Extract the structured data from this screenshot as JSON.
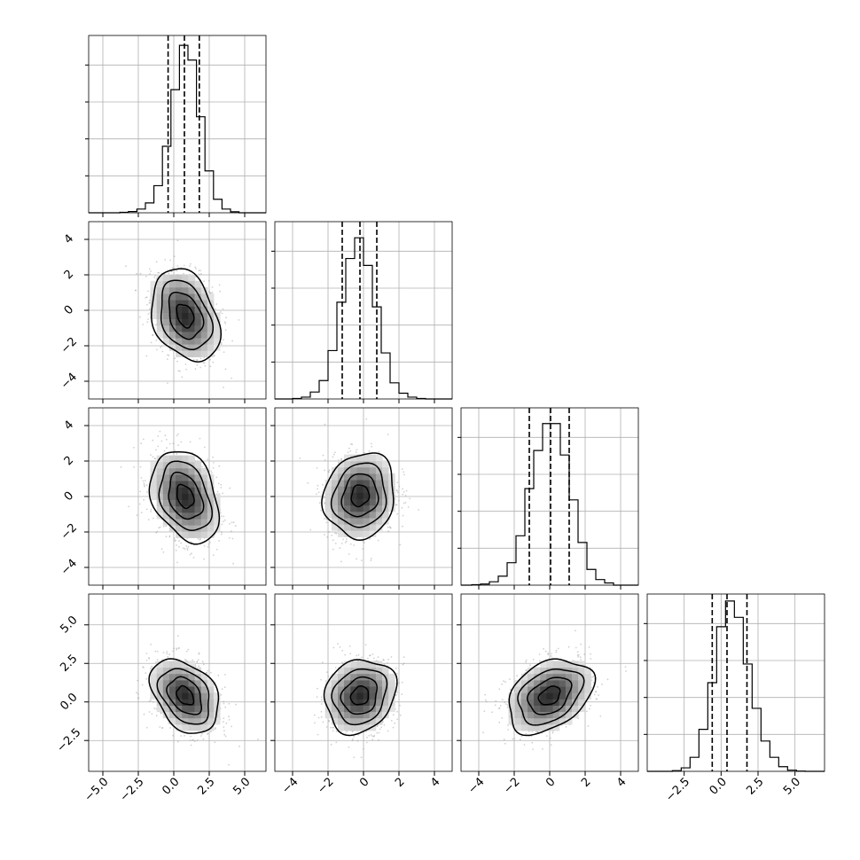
{
  "chart_data": {
    "type": "corner",
    "parameters": [
      {
        "name": "",
        "xlim": [
          -6.0,
          6.5
        ],
        "xticks": [
          -5.0,
          -2.5,
          0.0,
          2.5,
          5.0
        ],
        "xtick_labels": [
          "−5.0",
          "−2.5",
          "0.0",
          "2.5",
          "5.0"
        ],
        "quantiles": [
          -0.4,
          0.75,
          1.8
        ]
      },
      {
        "name": "",
        "xlim": [
          -5.0,
          5.0
        ],
        "xticks": [
          -4,
          -2,
          0,
          2,
          4
        ],
        "xtick_labels": [
          "−4",
          "−2",
          "0",
          "2",
          "4"
        ],
        "quantiles": [
          -1.2,
          -0.2,
          0.75
        ],
        "ylim": [
          -5.0,
          5.0
        ],
        "yticks": [
          -4,
          -2,
          0,
          2,
          4
        ],
        "ytick_labels": [
          "−4",
          "−2",
          "0",
          "2",
          "4"
        ]
      },
      {
        "name": "",
        "xlim": [
          -5.0,
          5.0
        ],
        "xticks": [
          -4,
          -2,
          0,
          2,
          4
        ],
        "xtick_labels": [
          "−4",
          "−2",
          "0",
          "2",
          "4"
        ],
        "quantiles": [
          -1.15,
          0.05,
          1.1
        ],
        "ylim": [
          -5.0,
          5.0
        ],
        "yticks": [
          -4,
          -2,
          0,
          2,
          4
        ],
        "ytick_labels": [
          "−4",
          "−2",
          "0",
          "2",
          "4"
        ]
      },
      {
        "name": "",
        "xlim": [
          -5.0,
          7.0
        ],
        "xticks": [
          -2.5,
          0.0,
          2.5,
          5.0
        ],
        "xtick_labels": [
          "−2.5",
          "0.0",
          "2.5",
          "5.0"
        ],
        "quantiles": [
          -0.6,
          0.4,
          1.75
        ],
        "ylim": [
          -4.5,
          7.0
        ],
        "yticks": [
          -2.5,
          0.0,
          2.5,
          5.0
        ],
        "ytick_labels": [
          "−2.5",
          "0.0",
          "2.5",
          "5.0"
        ]
      }
    ],
    "histograms": [
      {
        "bin_edges": [
          -3.8,
          -3.2,
          -2.6,
          -2.0,
          -1.4,
          -0.8,
          -0.2,
          0.4,
          1.0,
          1.6,
          2.2,
          2.8,
          3.4,
          4.0,
          4.6
        ],
        "counts": [
          2,
          5,
          15,
          40,
          110,
          270,
          500,
          680,
          620,
          390,
          170,
          55,
          15,
          4
        ],
        "ymax": 720
      },
      {
        "bin_edges": [
          -4.0,
          -3.5,
          -3.0,
          -2.5,
          -2.0,
          -1.5,
          -1.0,
          -0.5,
          0.0,
          0.5,
          1.0,
          1.5,
          2.0,
          2.5,
          3.0,
          3.5
        ],
        "counts": [
          2,
          8,
          30,
          80,
          210,
          420,
          610,
          700,
          580,
          400,
          200,
          70,
          25,
          8,
          2
        ],
        "ymax": 770
      },
      {
        "bin_edges": [
          -4.4,
          -3.9,
          -3.4,
          -2.9,
          -2.4,
          -1.9,
          -1.4,
          -0.9,
          -0.4,
          0.1,
          0.6,
          1.1,
          1.6,
          2.1,
          2.6,
          3.1,
          3.6
        ],
        "counts": [
          2,
          5,
          15,
          40,
          100,
          220,
          430,
          600,
          720,
          720,
          580,
          380,
          190,
          70,
          25,
          10
        ],
        "ymax": 790
      },
      {
        "bin_edges": [
          -3.3,
          -2.7,
          -2.1,
          -1.5,
          -0.9,
          -0.3,
          0.3,
          0.9,
          1.5,
          2.1,
          2.7,
          3.3,
          3.9,
          4.5,
          5.1,
          5.7
        ],
        "counts": [
          3,
          15,
          60,
          180,
          380,
          620,
          730,
          660,
          460,
          270,
          130,
          60,
          20,
          5,
          1
        ],
        "ymax": 760
      }
    ],
    "pairs": [
      {
        "x_param": 0,
        "y_param": 1,
        "mean": [
          0.8,
          -0.3
        ],
        "sigma": [
          1.2,
          1.3
        ],
        "rho": -0.3
      },
      {
        "x_param": 0,
        "y_param": 2,
        "mean": [
          0.8,
          0.0
        ],
        "sigma": [
          1.2,
          1.3
        ],
        "rho": -0.3
      },
      {
        "x_param": 1,
        "y_param": 2,
        "mean": [
          -0.2,
          0.05
        ],
        "sigma": [
          1.0,
          1.2
        ],
        "rho": 0.1
      },
      {
        "x_param": 0,
        "y_param": 3,
        "mean": [
          0.8,
          0.4
        ],
        "sigma": [
          1.2,
          1.2
        ],
        "rho": -0.35
      },
      {
        "x_param": 1,
        "y_param": 3,
        "mean": [
          -0.2,
          0.4
        ],
        "sigma": [
          1.0,
          1.2
        ],
        "rho": 0.15
      },
      {
        "x_param": 2,
        "y_param": 3,
        "mean": [
          0.0,
          0.4
        ],
        "sigma": [
          1.2,
          1.2
        ],
        "rho": 0.35
      }
    ],
    "contour_levels_sigma": [
      0.5,
      1.0,
      1.5,
      2.0
    ],
    "grid": true,
    "colors": {
      "line": "#000000",
      "grid": "#b0b0b0",
      "points": "#9a9a9a",
      "frame": "#000000"
    }
  }
}
